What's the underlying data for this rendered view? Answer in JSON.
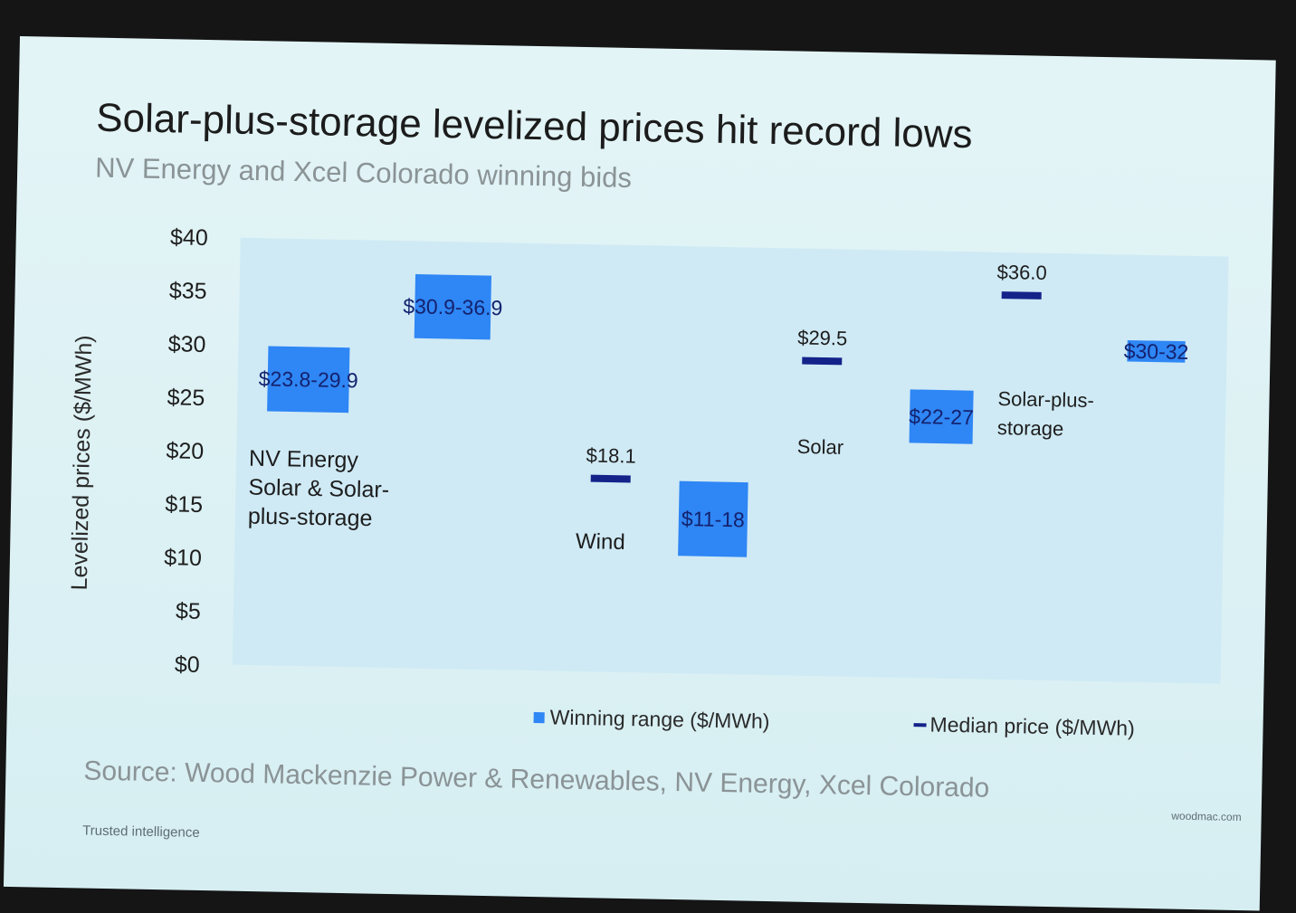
{
  "slide": {
    "title": "Solar-plus-storage levelized prices hit record lows",
    "subtitle": "NV Energy and Xcel Colorado winning bids",
    "source": "Source: Wood Mackenzie Power & Renewables, NV Energy, Xcel Colorado",
    "footer_left": "Trusted intelligence",
    "footer_right": "woodmac.com"
  },
  "chart_data": {
    "type": "bar",
    "ylabel": "Levelized prices ($/MWh)",
    "ylim": [
      0,
      40
    ],
    "yticks": [
      "$0",
      "$5",
      "$10",
      "$15",
      "$20",
      "$25",
      "$30",
      "$35",
      "$40"
    ],
    "grid": false,
    "legend": {
      "placement": "bottom",
      "range_label": "Winning range ($/MWh)",
      "median_label": "Median price ($/MWh)"
    },
    "groups": [
      {
        "label_lines": [
          "NV Energy",
          "Solar & Solar-",
          "plus-storage"
        ],
        "ranges": [
          {
            "low": 23.8,
            "high": 29.9,
            "label": "$23.8-29.9"
          },
          {
            "low": 30.9,
            "high": 36.9,
            "label": "$30.9-36.9"
          }
        ]
      },
      {
        "label_lines": [
          "Wind"
        ],
        "median": {
          "value": 18.1,
          "label": "$18.1"
        },
        "range": {
          "low": 11,
          "high": 18,
          "label": "$11-18"
        }
      },
      {
        "label_lines": [
          "Solar"
        ],
        "median": {
          "value": 29.5,
          "label": "$29.5"
        },
        "range": {
          "low": 22,
          "high": 27,
          "label": "$22-27"
        }
      },
      {
        "label_lines": [
          "Solar-plus-",
          "storage"
        ],
        "median": {
          "value": 36.0,
          "label": "$36.0"
        },
        "range": {
          "low": 30,
          "high": 32,
          "label": "$30-32"
        }
      }
    ],
    "colors": {
      "range": "#2f86f5",
      "median": "#13238a",
      "plot_bg": "#cfeaf5"
    }
  }
}
